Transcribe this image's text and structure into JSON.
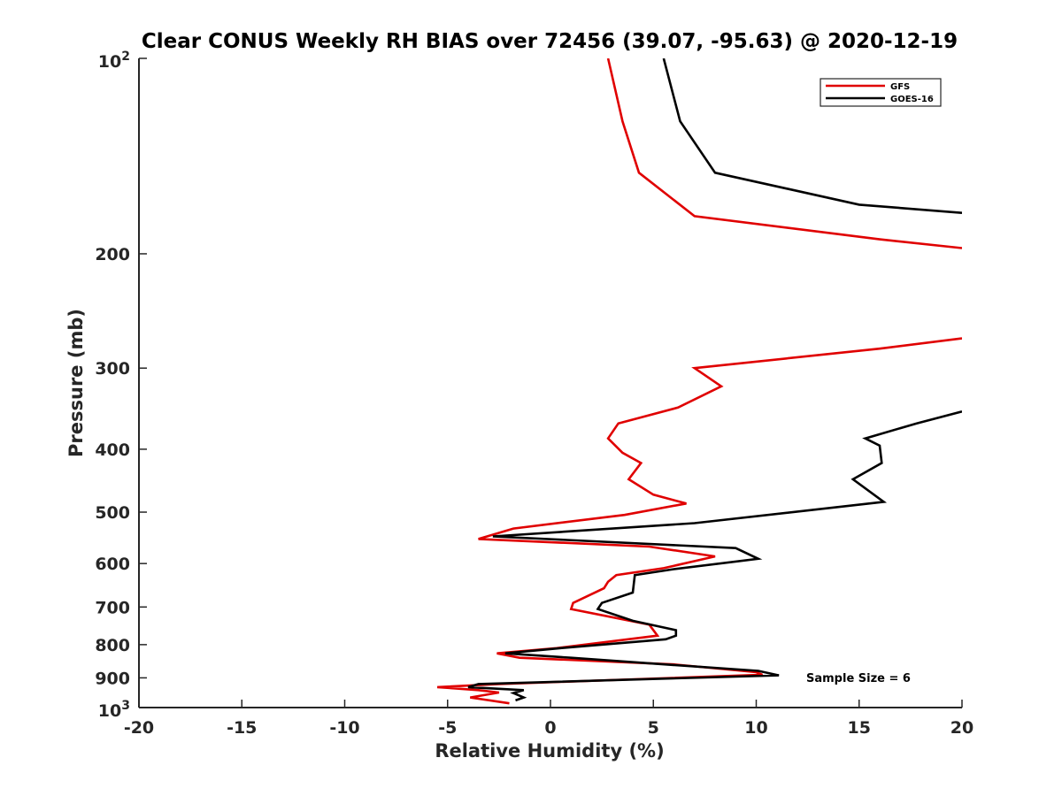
{
  "chart_data": {
    "type": "line",
    "title": "Clear CONUS Weekly RH BIAS over 72456 (39.07, -95.63) @ 2020-12-19",
    "xlabel": "Relative Humidity (%)",
    "ylabel": "Pressure (mb)",
    "xlim": [
      -20,
      20
    ],
    "ylim": [
      100,
      1000
    ],
    "yscale": "log",
    "y_reversed": true,
    "grid": false,
    "x_ticks": [
      -20,
      -15,
      -10,
      -5,
      0,
      5,
      10,
      15,
      20
    ],
    "x_tick_labels": [
      "-20",
      "-15",
      "-10",
      "-5",
      "0",
      "5",
      "10",
      "15",
      "20"
    ],
    "y_ticks": [
      200,
      300,
      400,
      500,
      600,
      700,
      800,
      900
    ],
    "y_tick_labels": [
      "200",
      "300",
      "400",
      "500",
      "600",
      "700",
      "800",
      "900"
    ],
    "y_top_label": {
      "base": "10",
      "exp": "2"
    },
    "y_bottom_label": {
      "base": "10",
      "exp": "3"
    },
    "legend_position": "top-right",
    "annotation": "Sample Size = 6",
    "series": [
      {
        "name": "GFS",
        "color": "#e00000",
        "points": [
          [
            2.8,
            100
          ],
          [
            3.5,
            125
          ],
          [
            4.3,
            150
          ],
          [
            7.0,
            175
          ],
          [
            16.0,
            190
          ],
          [
            20.0,
            196
          ],
          [
            null,
            null
          ],
          [
            20.0,
            270
          ],
          [
            16.0,
            280
          ],
          [
            7.0,
            300
          ],
          [
            8.3,
            320
          ],
          [
            6.2,
            345
          ],
          [
            3.3,
            365
          ],
          [
            2.8,
            385
          ],
          [
            3.5,
            405
          ],
          [
            4.4,
            420
          ],
          [
            3.8,
            445
          ],
          [
            5.0,
            470
          ],
          [
            6.6,
            485
          ],
          [
            3.6,
            505
          ],
          [
            -1.8,
            530
          ],
          [
            -3.5,
            550
          ],
          [
            4.8,
            565
          ],
          [
            8.0,
            585
          ],
          [
            5.5,
            610
          ],
          [
            3.2,
            625
          ],
          [
            2.8,
            640
          ],
          [
            2.6,
            655
          ],
          [
            1.1,
            690
          ],
          [
            1.0,
            705
          ],
          [
            4.8,
            745
          ],
          [
            5.2,
            775
          ],
          [
            0.3,
            810
          ],
          [
            -2.6,
            825
          ],
          [
            -1.5,
            838
          ],
          [
            6.0,
            858
          ],
          [
            10.0,
            882
          ],
          [
            10.3,
            890
          ],
          [
            -2.5,
            920
          ],
          [
            -5.5,
            930
          ],
          [
            -3.5,
            940
          ],
          [
            -2.5,
            948
          ],
          [
            -3.9,
            965
          ],
          [
            -2.0,
            985
          ]
        ]
      },
      {
        "name": "GOES-16",
        "color": "#000000",
        "points": [
          [
            5.5,
            100
          ],
          [
            6.3,
            125
          ],
          [
            8.0,
            150
          ],
          [
            15.0,
            168
          ],
          [
            20.0,
            173
          ],
          [
            null,
            null
          ],
          [
            20.0,
            350
          ],
          [
            17.8,
            365
          ],
          [
            15.3,
            385
          ],
          [
            16.0,
            395
          ],
          [
            16.1,
            420
          ],
          [
            14.7,
            445
          ],
          [
            16.2,
            482
          ],
          [
            7.0,
            520
          ],
          [
            -2.8,
            545
          ],
          [
            9.0,
            568
          ],
          [
            10.1,
            590
          ],
          [
            6.0,
            612
          ],
          [
            4.1,
            625
          ],
          [
            4.0,
            665
          ],
          [
            2.5,
            690
          ],
          [
            2.3,
            705
          ],
          [
            4.0,
            735
          ],
          [
            6.1,
            760
          ],
          [
            6.1,
            775
          ],
          [
            5.6,
            785
          ],
          [
            0.5,
            810
          ],
          [
            -2.2,
            825
          ],
          [
            1.0,
            838
          ],
          [
            6.0,
            860
          ],
          [
            10.1,
            878
          ],
          [
            11.1,
            892
          ],
          [
            -3.5,
            920
          ],
          [
            -4.0,
            930
          ],
          [
            -1.3,
            940
          ],
          [
            -1.8,
            950
          ],
          [
            -1.3,
            965
          ],
          [
            -1.7,
            975
          ]
        ]
      }
    ]
  }
}
